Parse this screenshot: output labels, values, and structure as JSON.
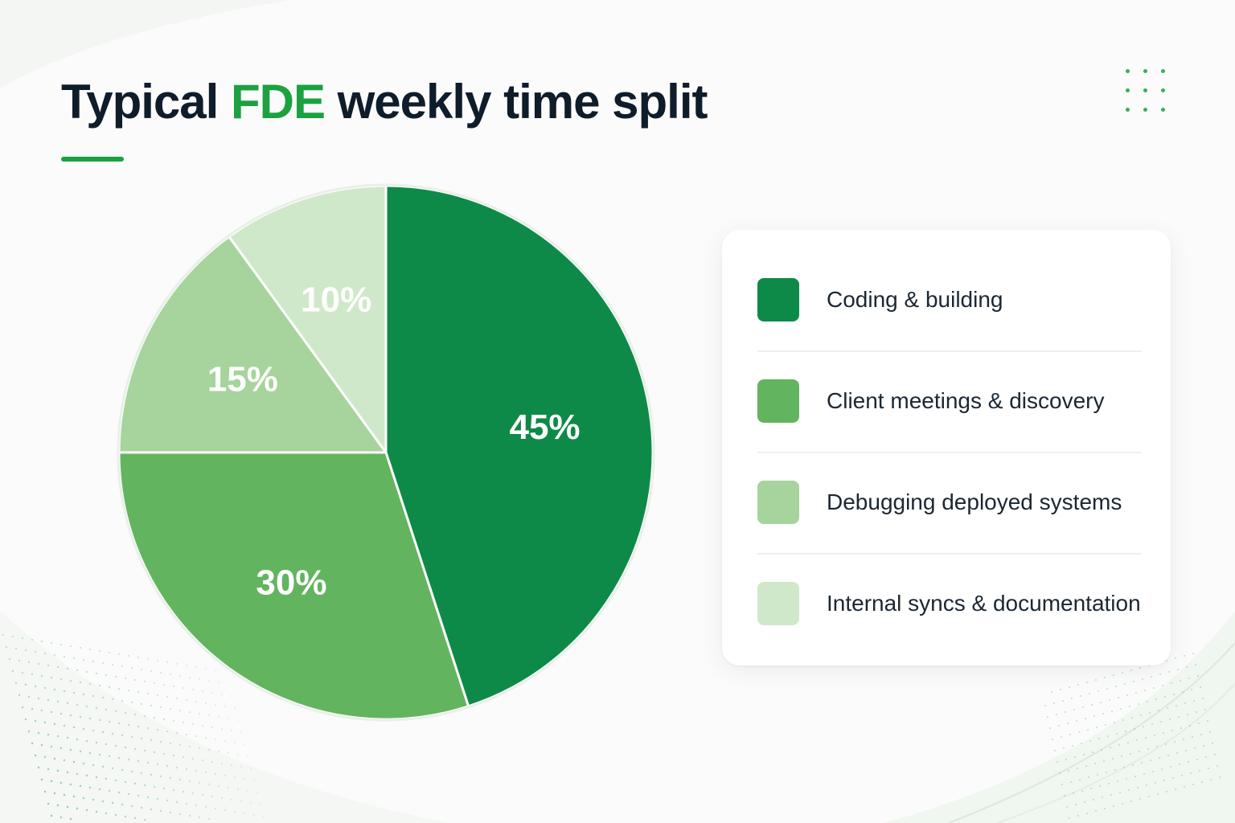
{
  "title": {
    "prefix": "Typical",
    "highlight": "FDE",
    "suffix": "weekly time split"
  },
  "colors": {
    "accent": "#1ba140",
    "title_text": "#0f1c2a"
  },
  "chart_data": {
    "type": "pie",
    "title": "Typical FDE weekly time split",
    "unit": "%",
    "legend_position": "right",
    "slices": [
      {
        "label": "Coding & building",
        "value": 45,
        "value_label": "45%",
        "color": "#0e8a48"
      },
      {
        "label": "Client meetings & discovery",
        "value": 30,
        "value_label": "30%",
        "color": "#63b45e"
      },
      {
        "label": "Debugging deployed systems",
        "value": 15,
        "value_label": "15%",
        "color": "#a6d49c"
      },
      {
        "label": "Internal syncs & documentation",
        "value": 10,
        "value_label": "10%",
        "color": "#d0e8ca"
      }
    ]
  }
}
